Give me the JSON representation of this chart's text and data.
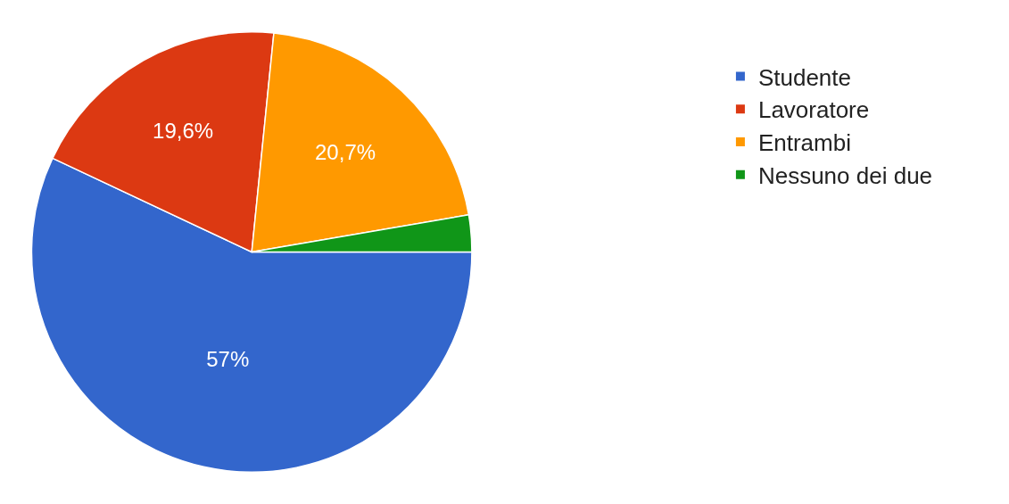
{
  "chart_data": {
    "type": "pie",
    "categories": [
      "Studente",
      "Lavoratore",
      "Entrambi",
      "Nessuno dei due"
    ],
    "values": [
      57,
      19.6,
      20.7,
      2.7
    ],
    "colors": [
      "#3366cc",
      "#dc3912",
      "#ff9900",
      "#109618"
    ],
    "value_labels": [
      "57%",
      "19,6%",
      "20,7%",
      null
    ],
    "legend": "top right"
  }
}
